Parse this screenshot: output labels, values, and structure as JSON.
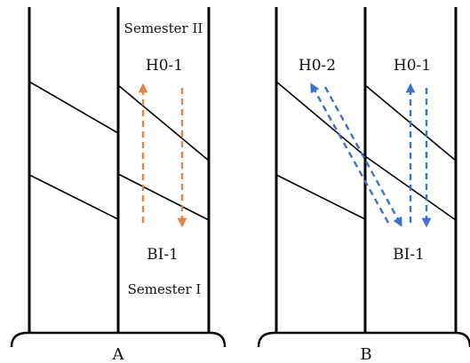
{
  "panel_a": {
    "caption": "A",
    "top_label": "Semester II",
    "upper_code": "H0-1",
    "lower_code": "BI-1",
    "bottom_label": "Semester I",
    "arrow_color": "#E8823A"
  },
  "panel_b": {
    "caption": "B",
    "left_code": "H0-2",
    "upper_code": "H0-1",
    "lower_code": "BI-1",
    "arrow_color": "#3A72D0"
  }
}
